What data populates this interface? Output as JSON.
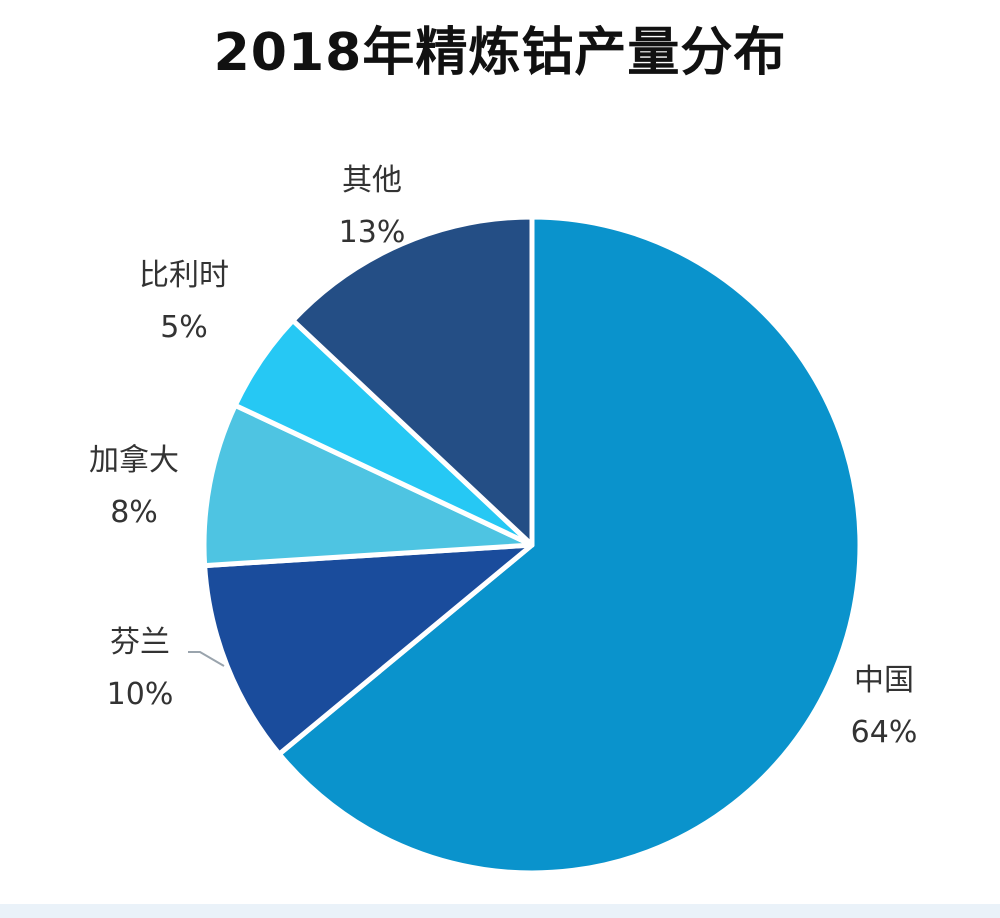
{
  "chart_data": {
    "type": "pie",
    "title": "2018年精炼钴产量分布",
    "categories": [
      "中国",
      "芬兰",
      "加拿大",
      "比利时",
      "其他"
    ],
    "values": [
      64,
      10,
      8,
      5,
      13
    ],
    "value_labels": [
      "64%",
      "10%",
      "8%",
      "5%",
      "13%"
    ],
    "unit": "%",
    "colors": [
      "#0A93CC",
      "#1A4C9C",
      "#4EC4E2",
      "#26C8F4",
      "#244E85"
    ],
    "legend": "none",
    "data_labels": "outside"
  }
}
